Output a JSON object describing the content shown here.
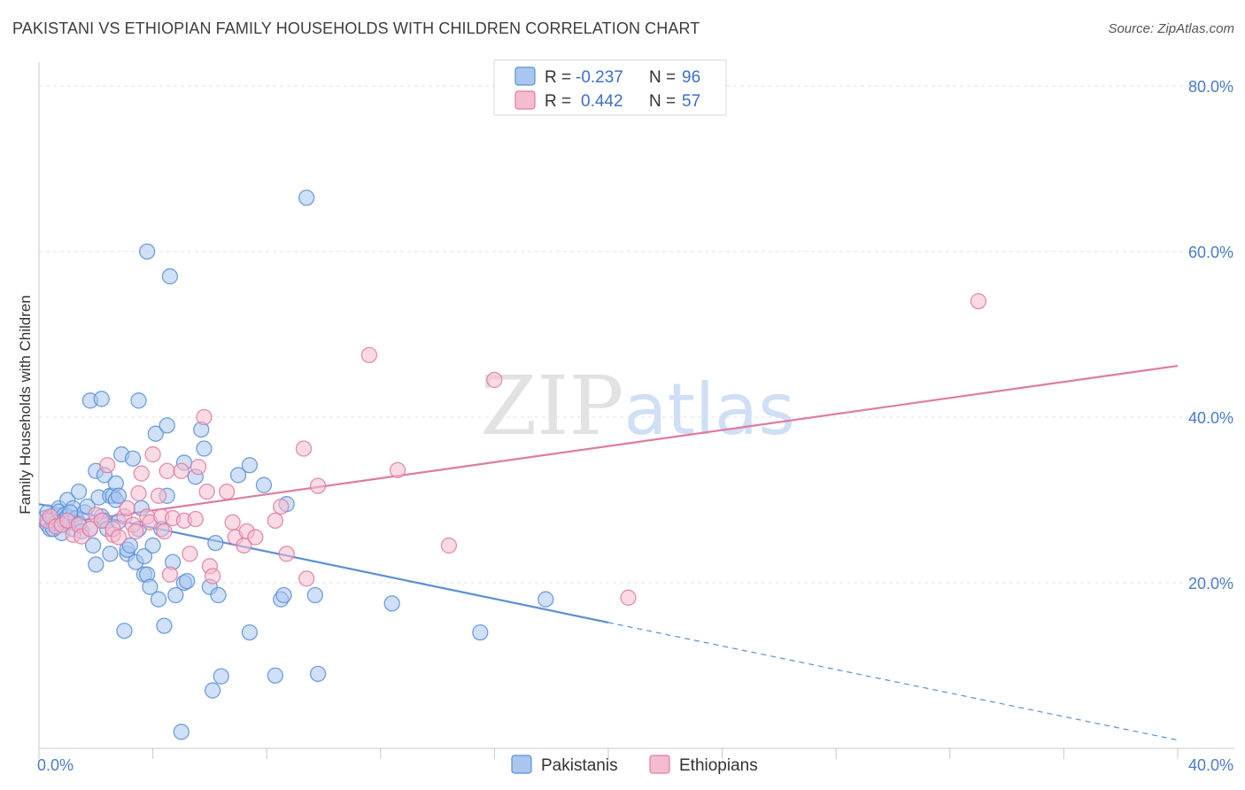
{
  "title": "PAKISTANI VS ETHIOPIAN FAMILY HOUSEHOLDS WITH CHILDREN CORRELATION CHART",
  "source": "Source: ZipAtlas.com",
  "watermark": "ZIPatlas",
  "chart_data": {
    "type": "scatter",
    "ylabel": "Family Households with Children",
    "xlim": [
      0,
      40
    ],
    "ylim": [
      0,
      80
    ],
    "x_tick_labels": [
      "0.0%",
      "40.0%"
    ],
    "y_tick_labels": [
      "80.0%",
      "60.0%",
      "40.0%",
      "20.0%"
    ],
    "y_tick_values": [
      80,
      60,
      40,
      20
    ],
    "legend": {
      "r_label": "R =",
      "n_label": "N =",
      "entries": [
        {
          "r": "-0.237",
          "n": "96"
        },
        {
          "r": "0.442",
          "n": "57"
        }
      ]
    },
    "series": [
      {
        "name": "Pakistanis",
        "color": "#5b8fd8",
        "fill": "#aac6ef",
        "trend": {
          "x0": 0,
          "y0": 29.5,
          "x1": 20,
          "y1": 15.2,
          "dash_to_x": 40,
          "dash_to_y": 1.0
        },
        "points": [
          [
            0.2,
            27.8
          ],
          [
            0.3,
            28.5
          ],
          [
            0.3,
            27
          ],
          [
            0.4,
            26.5
          ],
          [
            0.5,
            27.5
          ],
          [
            0.5,
            28
          ],
          [
            0.6,
            26.8
          ],
          [
            0.6,
            27.2
          ],
          [
            0.7,
            29
          ],
          [
            0.7,
            28.6
          ],
          [
            0.8,
            27
          ],
          [
            0.8,
            26
          ],
          [
            0.9,
            28.2
          ],
          [
            0.9,
            27.6
          ],
          [
            1.0,
            30
          ],
          [
            1.0,
            28
          ],
          [
            1.1,
            27.3
          ],
          [
            1.2,
            26.5
          ],
          [
            1.2,
            29
          ],
          [
            1.3,
            27.8
          ],
          [
            1.4,
            31
          ],
          [
            1.4,
            27.2
          ],
          [
            1.5,
            26.2
          ],
          [
            1.6,
            28.5
          ],
          [
            1.7,
            29.2
          ],
          [
            1.8,
            26.5
          ],
          [
            1.9,
            24.5
          ],
          [
            2.0,
            33.5
          ],
          [
            2.0,
            22.2
          ],
          [
            2.1,
            30.3
          ],
          [
            2.2,
            28
          ],
          [
            2.3,
            33
          ],
          [
            2.3,
            27.5
          ],
          [
            2.4,
            26.5
          ],
          [
            2.5,
            23.5
          ],
          [
            2.5,
            30.5
          ],
          [
            2.6,
            30.5
          ],
          [
            2.7,
            30
          ],
          [
            2.7,
            32
          ],
          [
            2.8,
            30.5
          ],
          [
            2.8,
            27.4
          ],
          [
            2.9,
            35.5
          ],
          [
            3.0,
            14.2
          ],
          [
            3.1,
            23.5
          ],
          [
            3.1,
            24
          ],
          [
            3.2,
            24.5
          ],
          [
            3.3,
            35
          ],
          [
            3.4,
            22.5
          ],
          [
            3.5,
            42
          ],
          [
            3.5,
            26.5
          ],
          [
            3.6,
            29
          ],
          [
            3.7,
            23.2
          ],
          [
            3.7,
            21
          ],
          [
            3.8,
            21
          ],
          [
            3.8,
            60
          ],
          [
            3.9,
            19.5
          ],
          [
            4.0,
            24.5
          ],
          [
            4.1,
            38
          ],
          [
            4.2,
            18
          ],
          [
            4.3,
            26.5
          ],
          [
            4.4,
            14.8
          ],
          [
            4.5,
            39
          ],
          [
            4.5,
            30.5
          ],
          [
            4.6,
            57
          ],
          [
            4.7,
            22.5
          ],
          [
            4.8,
            18.5
          ],
          [
            5.0,
            2
          ],
          [
            5.1,
            34.5
          ],
          [
            5.1,
            20
          ],
          [
            5.2,
            20.2
          ],
          [
            5.5,
            32.8
          ],
          [
            5.7,
            38.5
          ],
          [
            5.8,
            36.2
          ],
          [
            6.0,
            19.5
          ],
          [
            6.1,
            7
          ],
          [
            6.2,
            24.8
          ],
          [
            6.3,
            18.5
          ],
          [
            6.4,
            8.7
          ],
          [
            7.0,
            33
          ],
          [
            7.4,
            34.2
          ],
          [
            7.4,
            14
          ],
          [
            7.9,
            31.8
          ],
          [
            8.3,
            8.8
          ],
          [
            8.5,
            18
          ],
          [
            8.6,
            18.5
          ],
          [
            8.7,
            29.5
          ],
          [
            9.4,
            66.5
          ],
          [
            9.7,
            18.5
          ],
          [
            9.8,
            9
          ],
          [
            12.4,
            17.5
          ],
          [
            15.5,
            14
          ],
          [
            17.8,
            18
          ],
          [
            1.8,
            42
          ],
          [
            2.2,
            42.2
          ],
          [
            0.5,
            26.5
          ],
          [
            1.1,
            28.5
          ]
        ]
      },
      {
        "name": "Ethiopians",
        "color": "#e07aa0",
        "fill": "#f5bcd0",
        "trend": {
          "x0": 0,
          "y0": 26.8,
          "x1": 40,
          "y1": 46.2
        },
        "points": [
          [
            0.3,
            27.5
          ],
          [
            0.4,
            28
          ],
          [
            0.6,
            26.8
          ],
          [
            0.8,
            27
          ],
          [
            1.0,
            27.5
          ],
          [
            1.2,
            25.8
          ],
          [
            1.4,
            27
          ],
          [
            1.5,
            25.6
          ],
          [
            1.8,
            26.5
          ],
          [
            2.0,
            28.2
          ],
          [
            2.2,
            27.5
          ],
          [
            2.4,
            34.2
          ],
          [
            2.6,
            25.8
          ],
          [
            2.6,
            26.5
          ],
          [
            2.8,
            25.5
          ],
          [
            3.0,
            28
          ],
          [
            3.1,
            29
          ],
          [
            3.3,
            27
          ],
          [
            3.4,
            26.2
          ],
          [
            3.5,
            30.8
          ],
          [
            3.6,
            33.2
          ],
          [
            3.8,
            28
          ],
          [
            3.9,
            27.3
          ],
          [
            4.0,
            35.5
          ],
          [
            4.2,
            30.5
          ],
          [
            4.3,
            28
          ],
          [
            4.4,
            26.2
          ],
          [
            4.5,
            33.5
          ],
          [
            4.6,
            21
          ],
          [
            4.7,
            27.8
          ],
          [
            5.0,
            33.5
          ],
          [
            5.1,
            27.5
          ],
          [
            5.3,
            23.5
          ],
          [
            5.5,
            27.7
          ],
          [
            5.6,
            34
          ],
          [
            5.8,
            40
          ],
          [
            5.9,
            31
          ],
          [
            6.0,
            22
          ],
          [
            6.1,
            20.8
          ],
          [
            6.6,
            31
          ],
          [
            6.8,
            27.3
          ],
          [
            6.9,
            25.5
          ],
          [
            7.2,
            24.5
          ],
          [
            7.3,
            26.2
          ],
          [
            7.6,
            25.5
          ],
          [
            8.3,
            27.5
          ],
          [
            8.5,
            29.2
          ],
          [
            8.7,
            23.5
          ],
          [
            9.3,
            36.2
          ],
          [
            9.4,
            20.5
          ],
          [
            9.8,
            31.7
          ],
          [
            11.6,
            47.5
          ],
          [
            12.6,
            33.6
          ],
          [
            14.4,
            24.5
          ],
          [
            16.0,
            44.5
          ],
          [
            20.7,
            18.2
          ],
          [
            33.0,
            54
          ]
        ]
      }
    ]
  },
  "bottom_legend": [
    "Pakistanis",
    "Ethiopians"
  ]
}
